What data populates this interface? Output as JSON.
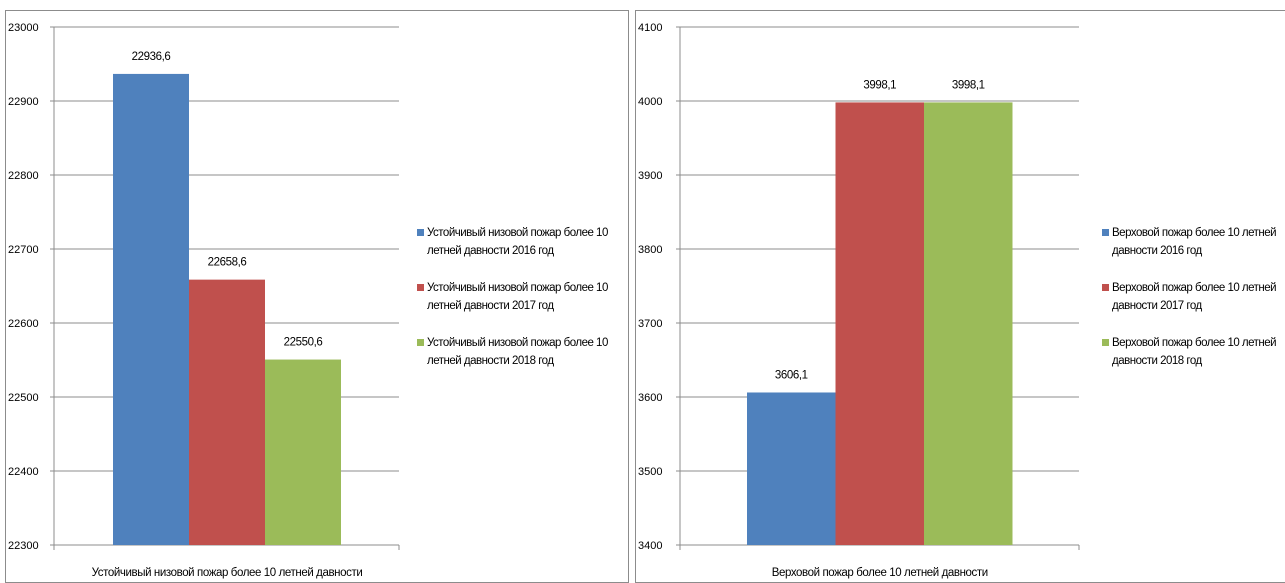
{
  "chart_data": [
    {
      "type": "bar",
      "categories": [
        "Устойчивый низовой пожар более 10 летней давности"
      ],
      "series": [
        {
          "name": "Устойчивый низовой пожар более 10 летней давности 2016 год",
          "values": [
            22936.6
          ],
          "label": "22936,6",
          "color": "#4f81bd"
        },
        {
          "name": "Устойчивый низовой пожар более 10 летней давности 2017 год",
          "values": [
            22658.6
          ],
          "label": "22658,6",
          "color": "#c0504d"
        },
        {
          "name": "Устойчивый низовой пожар более 10 летней давности 2018 год",
          "values": [
            22550.6
          ],
          "label": "22550,6",
          "color": "#9bbb59"
        }
      ],
      "legend_lines": [
        [
          "Устойчивый низовой пожар более 10",
          "летней давности 2016 год"
        ],
        [
          "Устойчивый низовой пожар более 10",
          "летней давности 2017 год"
        ],
        [
          "Устойчивый низовой пожар более 10",
          "летней давности 2018 год"
        ]
      ],
      "yticks": [
        "22300",
        "22400",
        "22500",
        "22600",
        "22700",
        "22800",
        "22900",
        "23000"
      ],
      "ylim": [
        22300,
        23000
      ],
      "grid": true,
      "legend": "right"
    },
    {
      "type": "bar",
      "categories": [
        "Верховой пожар более 10 летней давности"
      ],
      "series": [
        {
          "name": "Верховой пожар более 10 летней давности 2016 год",
          "values": [
            3606.1
          ],
          "label": "3606,1",
          "color": "#4f81bd"
        },
        {
          "name": "Верховой пожар более 10 летней давности 2017 год",
          "values": [
            3998.1
          ],
          "label": "3998,1",
          "color": "#c0504d"
        },
        {
          "name": "Верховой пожар более 10 летней давности 2018 год",
          "values": [
            3998.1
          ],
          "label": "3998,1",
          "color": "#9bbb59"
        }
      ],
      "legend_lines": [
        [
          "Верховой пожар более 10 летней",
          "давности 2016 год"
        ],
        [
          "Верховой пожар более 10 летней",
          "давности 2017 год"
        ],
        [
          "Верховой пожар более 10 летней",
          "давности 2018 год"
        ]
      ],
      "yticks": [
        "3400",
        "3500",
        "3600",
        "3700",
        "3800",
        "3900",
        "4000",
        "4100"
      ],
      "ylim": [
        3400,
        4100
      ],
      "grid": true,
      "legend": "right"
    }
  ]
}
